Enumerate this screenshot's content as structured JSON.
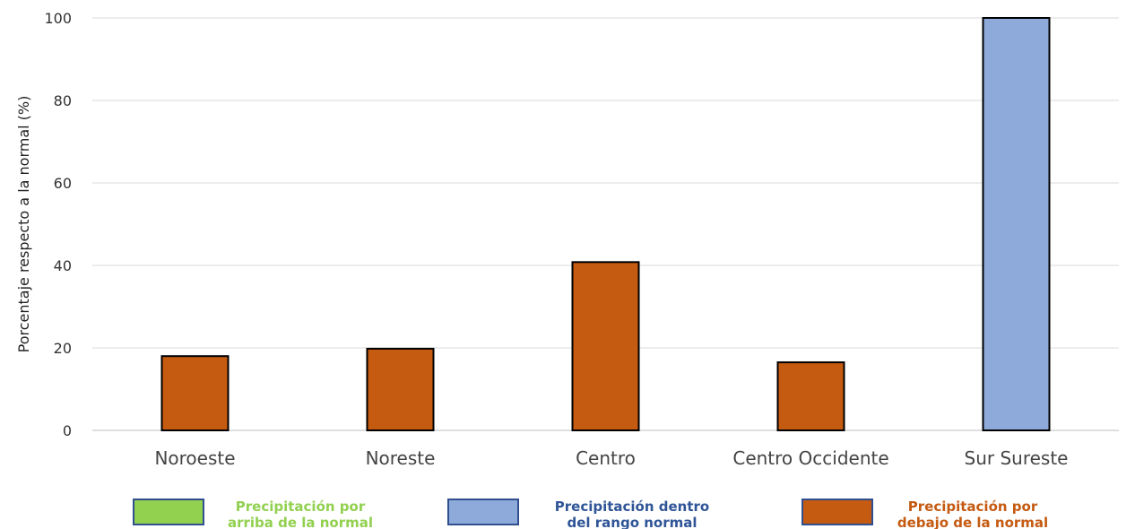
{
  "chart_data": {
    "type": "bar",
    "title": "",
    "xlabel": "",
    "ylabel": "Porcentaje respecto a la normal (%)",
    "ylim": [
      0,
      100
    ],
    "yticks": [
      0,
      20,
      40,
      60,
      80,
      100
    ],
    "grid": true,
    "categories": [
      "Noroeste",
      "Noreste",
      "Centro",
      "Centro Occidente",
      "Sur Sureste"
    ],
    "values": [
      18,
      19.8,
      40.8,
      16.5,
      100
    ],
    "bar_status": [
      "below",
      "below",
      "below",
      "below",
      "within"
    ],
    "legend": {
      "placement": "bottom",
      "items": [
        {
          "key": "above",
          "lines": [
            "Precipitación por",
            "arriba de la normal"
          ],
          "color": "#92D050",
          "text_color": "#92D050"
        },
        {
          "key": "within",
          "lines": [
            "Precipitación dentro",
            "del rango normal"
          ],
          "color": "#8EAADB",
          "text_color": "#2F5597"
        },
        {
          "key": "below",
          "lines": [
            "Precipitación por",
            "debajo de la normal"
          ],
          "color": "#C55A11",
          "text_color": "#C55A11"
        }
      ]
    }
  }
}
